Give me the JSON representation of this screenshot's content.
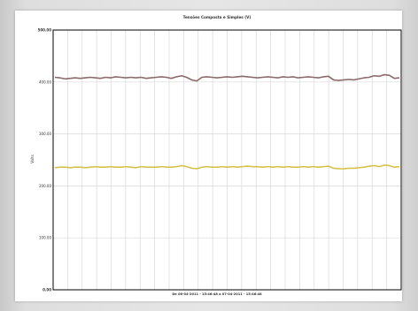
{
  "chart_data": {
    "type": "line",
    "title": "Tensões Composta e Simples (V)",
    "xlabel": "De 06-04-2011 - 15:46:48 a 07-04-2011 - 15:46:48",
    "ylabel": "Volts",
    "ylim": [
      0,
      500
    ],
    "y_ticks": [
      "500.00",
      "400.00",
      "300.00",
      "200.00",
      "100.00",
      "0.00"
    ],
    "grid": true,
    "x_grid_lines": 23,
    "series": [
      {
        "color": "#8b6b6b",
        "values": [
          409,
          408,
          406,
          407,
          408,
          407,
          408,
          409,
          408,
          407,
          409,
          408,
          410,
          409,
          408,
          409,
          408,
          409,
          407,
          408,
          409,
          410,
          409,
          407,
          410,
          412,
          409,
          404,
          402,
          409,
          410,
          409,
          408,
          409,
          410,
          409,
          410,
          411,
          410,
          409,
          408,
          409,
          410,
          409,
          408,
          410,
          409,
          410,
          408,
          409,
          410,
          409,
          408,
          410,
          411,
          404,
          403,
          404,
          405,
          404,
          406,
          408,
          409,
          412,
          411,
          414,
          413,
          407,
          408
        ]
      },
      {
        "color": "#d4c24a",
        "values": [
          235,
          236,
          236,
          235,
          236,
          236,
          235,
          236,
          237,
          236,
          236,
          237,
          236,
          236,
          237,
          236,
          235,
          237,
          236,
          236,
          236,
          237,
          236,
          236,
          237,
          239,
          237,
          234,
          233,
          236,
          237,
          236,
          236,
          237,
          236,
          237,
          236,
          237,
          238,
          237,
          237,
          236,
          237,
          236,
          237,
          236,
          237,
          236,
          236,
          237,
          236,
          237,
          236,
          237,
          238,
          234,
          233,
          233,
          234,
          234,
          235,
          236,
          238,
          239,
          237,
          240,
          239,
          236,
          237
        ]
      }
    ]
  }
}
